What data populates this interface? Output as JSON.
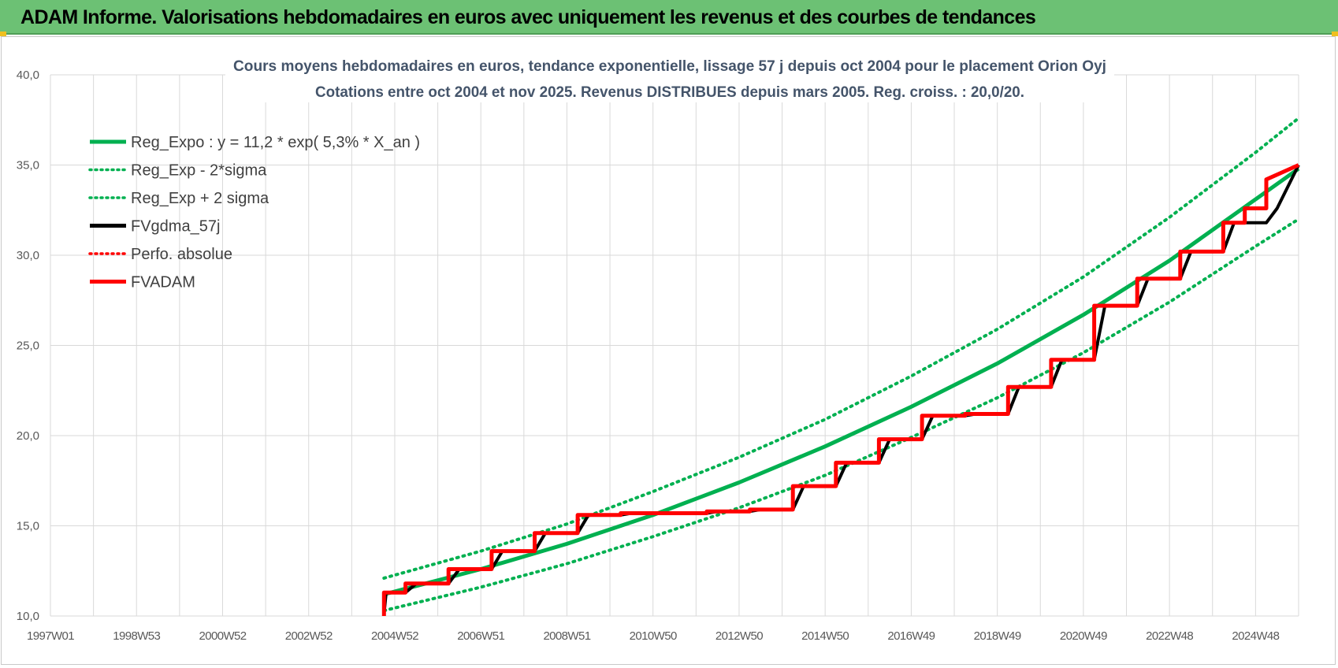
{
  "header": {
    "title": "ADAM Informe. Valorisations hebdomadaires en euros avec uniquement les revenus et des courbes de tendances"
  },
  "chart_data": {
    "type": "line",
    "title": "Cours moyens hebdomadaires en euros, tendance exponentielle, lissage 57 j depuis oct 2004 pour le placement Orion Oyj",
    "subtitle": "Cotations entre oct 2004  et  nov 2025. Revenus DISTRIBUES depuis mars 2005.  Reg. croiss. : 20,0/20.",
    "xlabel": "",
    "ylabel": "",
    "ylim": [
      10,
      40
    ],
    "xlim": [
      1997.0,
      2026.0
    ],
    "yticks": [
      "10,0",
      "15,0",
      "20,0",
      "25,0",
      "30,0",
      "35,0",
      "40,0"
    ],
    "xticks": [
      {
        "label": "1997W01",
        "x": 1997.0
      },
      {
        "label": "1998W53",
        "x": 1999.0
      },
      {
        "label": "2000W52",
        "x": 2001.0
      },
      {
        "label": "2002W52",
        "x": 2003.0
      },
      {
        "label": "2004W52",
        "x": 2005.0
      },
      {
        "label": "2006W51",
        "x": 2007.0
      },
      {
        "label": "2008W51",
        "x": 2009.0
      },
      {
        "label": "2010W50",
        "x": 2011.0
      },
      {
        "label": "2012W50",
        "x": 2013.0
      },
      {
        "label": "2014W50",
        "x": 2015.0
      },
      {
        "label": "2016W49",
        "x": 2017.0
      },
      {
        "label": "2018W49",
        "x": 2019.0
      },
      {
        "label": "2020W49",
        "x": 2021.0
      },
      {
        "label": "2022W48",
        "x": 2023.0
      },
      {
        "label": "2024W48",
        "x": 2025.0
      }
    ],
    "grid": true,
    "legend_position": "top-left",
    "series": [
      {
        "name": "Reg_Expo : y = 11,2 * exp( 5,3% *  X_an )",
        "color": "#00b050",
        "style": "solid",
        "x": [
          2004.75,
          2007.0,
          2009.0,
          2011.0,
          2013.0,
          2015.0,
          2017.0,
          2019.0,
          2021.0,
          2023.0,
          2025.0,
          2026.0
        ],
        "y": [
          11.2,
          12.6,
          14.0,
          15.6,
          17.4,
          19.4,
          21.6,
          24.0,
          26.7,
          29.7,
          33.1,
          34.8
        ]
      },
      {
        "name": "Reg_Exp - 2*sigma",
        "color": "#00b050",
        "style": "dotted",
        "x": [
          2004.75,
          2007.0,
          2009.0,
          2011.0,
          2013.0,
          2015.0,
          2017.0,
          2019.0,
          2021.0,
          2023.0,
          2025.0,
          2026.0
        ],
        "y": [
          10.3,
          11.6,
          12.9,
          14.4,
          16.0,
          17.8,
          19.9,
          22.1,
          24.6,
          27.4,
          30.5,
          32.0
        ]
      },
      {
        "name": "Reg_Exp + 2 sigma",
        "color": "#00b050",
        "style": "dotted",
        "x": [
          2004.75,
          2007.0,
          2009.0,
          2011.0,
          2013.0,
          2015.0,
          2017.0,
          2019.0,
          2021.0,
          2023.0,
          2025.0,
          2026.0
        ],
        "y": [
          12.1,
          13.6,
          15.1,
          16.9,
          18.8,
          20.9,
          23.3,
          25.9,
          28.8,
          32.1,
          35.7,
          37.6
        ]
      },
      {
        "name": "FVgdma_57j",
        "color": "#000000",
        "style": "solid",
        "x": [
          2004.75,
          2004.8,
          2005.25,
          2005.5,
          2006.25,
          2006.5,
          2007.25,
          2007.5,
          2008.25,
          2008.5,
          2009.25,
          2009.5,
          2010.25,
          2010.5,
          2011.25,
          2011.5,
          2012.25,
          2012.5,
          2013.25,
          2013.5,
          2014.25,
          2014.5,
          2015.25,
          2015.5,
          2016.25,
          2016.5,
          2017.25,
          2017.5,
          2018.25,
          2018.5,
          2019.25,
          2019.5,
          2020.25,
          2020.5,
          2021.25,
          2021.5,
          2022.25,
          2022.5,
          2023.25,
          2023.5,
          2024.25,
          2024.5,
          2025.25,
          2025.5,
          2026.0
        ],
        "y": [
          10.1,
          11.3,
          11.3,
          11.8,
          11.8,
          12.6,
          12.6,
          13.6,
          13.6,
          14.6,
          14.6,
          15.6,
          15.6,
          15.7,
          15.7,
          15.7,
          15.7,
          15.8,
          15.8,
          15.9,
          15.9,
          17.2,
          17.2,
          18.5,
          18.5,
          19.8,
          19.8,
          21.1,
          21.1,
          21.2,
          21.2,
          22.7,
          22.7,
          24.2,
          24.2,
          27.2,
          27.2,
          28.7,
          28.7,
          30.2,
          30.2,
          31.8,
          31.8,
          32.6,
          35.0
        ]
      },
      {
        "name": "Perfo. absolue",
        "color": "#ff0000",
        "style": "dotted",
        "x": [],
        "y": []
      },
      {
        "name": "FVADAM",
        "color": "#ff0000",
        "style": "solid",
        "x": [
          2004.75,
          2004.75,
          2005.25,
          2005.25,
          2006.25,
          2006.25,
          2007.25,
          2007.25,
          2008.25,
          2008.25,
          2009.25,
          2009.25,
          2010.25,
          2010.25,
          2011.25,
          2011.25,
          2012.25,
          2012.25,
          2013.25,
          2013.25,
          2014.25,
          2014.25,
          2015.25,
          2015.25,
          2016.25,
          2016.25,
          2017.25,
          2017.25,
          2018.25,
          2018.25,
          2019.25,
          2019.25,
          2020.25,
          2020.25,
          2021.25,
          2021.25,
          2022.25,
          2022.25,
          2023.25,
          2023.25,
          2024.25,
          2024.25,
          2024.75,
          2024.75,
          2025.25,
          2025.25,
          2026.0
        ],
        "y": [
          10.0,
          11.3,
          11.3,
          11.8,
          11.8,
          12.6,
          12.6,
          13.6,
          13.6,
          14.6,
          14.6,
          15.6,
          15.6,
          15.7,
          15.7,
          15.7,
          15.7,
          15.8,
          15.8,
          15.9,
          15.9,
          17.2,
          17.2,
          18.5,
          18.5,
          19.8,
          19.8,
          21.1,
          21.1,
          21.2,
          21.2,
          22.7,
          22.7,
          24.2,
          24.2,
          27.2,
          27.2,
          28.7,
          28.7,
          30.2,
          30.2,
          31.8,
          31.8,
          32.6,
          32.6,
          34.2,
          35.0
        ]
      }
    ]
  }
}
